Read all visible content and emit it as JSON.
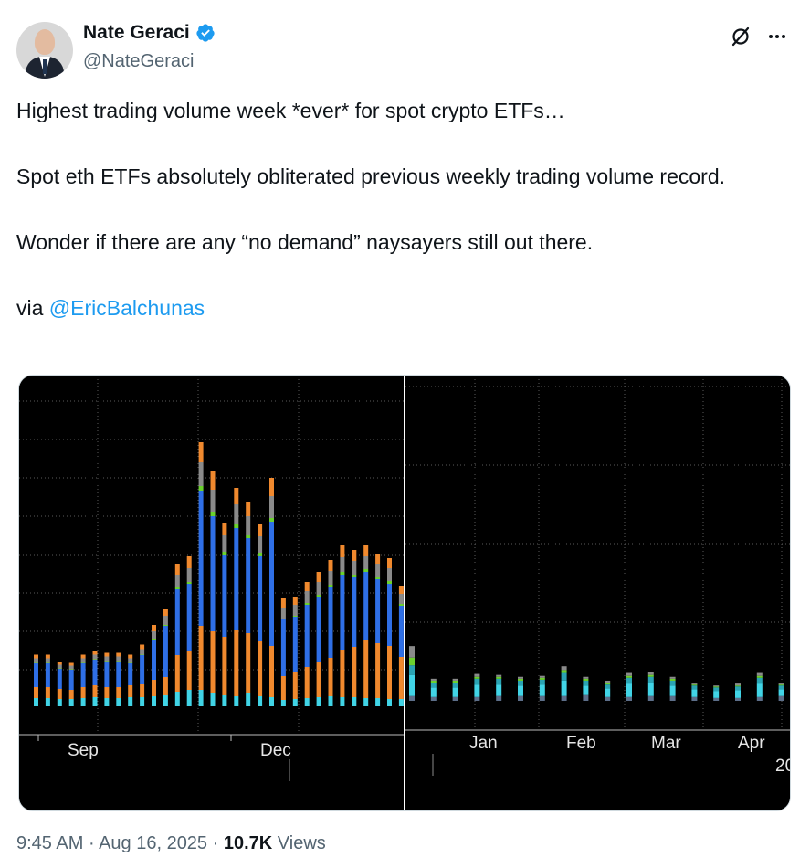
{
  "author": {
    "display_name": "Nate Geraci",
    "handle": "@NateGeraci",
    "verified": true,
    "verified_color": "#1d9bf0"
  },
  "tweet": {
    "line1": "Highest trading volume week *ever* for spot crypto ETFs…",
    "line2": "Spot eth ETFs absolutely obliterated previous weekly trading volume record.",
    "line3": "Wonder if there are any “no demand” naysayers still out there.",
    "via_prefix": "via ",
    "mention": "@EricBalchunas"
  },
  "meta": {
    "time": "9:45 AM",
    "dot1": " · ",
    "date": "Aug 16, 2025",
    "dot2": " · ",
    "views_count": "10.7K",
    "views_label": " Views"
  },
  "icons": {
    "verified": "verified-badge-icon",
    "grok": "grok-icon",
    "more": "more-icon"
  },
  "colors": {
    "text": "#0f1419",
    "muted": "#536471",
    "link": "#1d9bf0",
    "chart_bg": "#000000",
    "seg_cyan": "#41d4e6",
    "seg_orange": "#f0892e",
    "seg_blue": "#2f6fe6",
    "seg_green": "#6bd12e",
    "seg_gray": "#8a8a8a",
    "seg_slate": "#5d6f8a"
  },
  "chart_data": [
    {
      "type": "bar",
      "stacked": true,
      "x_tick_labels": [
        "Sep",
        "Dec"
      ],
      "series": [
        {
          "values": [
            0.9,
            0.9,
            0.8,
            0.8,
            0.9,
            1.0,
            0.9,
            0.9,
            1.0,
            1.0,
            1.1,
            1.2,
            1.6,
            1.8,
            1.8,
            1.4,
            1.2,
            1.1,
            1.4,
            1.1,
            1.0,
            0.7,
            0.8,
            0.9,
            1.0,
            1.1,
            1.0,
            1.0,
            0.9,
            0.9,
            0.8,
            0.8
          ]
        },
        {
          "values": [
            1.2,
            1.2,
            1.1,
            1.0,
            1.2,
            1.3,
            1.2,
            1.2,
            1.3,
            1.4,
            1.8,
            2.0,
            4.0,
            4.2,
            7.0,
            6.8,
            6.4,
            7.2,
            6.6,
            6.0,
            5.6,
            2.6,
            3.0,
            3.4,
            3.8,
            4.2,
            5.2,
            5.5,
            6.4,
            6.0,
            5.8,
            4.6
          ]
        },
        {
          "values": [
            2.6,
            2.6,
            2.2,
            2.2,
            2.6,
            2.8,
            2.8,
            2.8,
            2.4,
            3.2,
            4.4,
            5.6,
            7.2,
            7.4,
            14.8,
            12.6,
            9.0,
            11.2,
            10.4,
            9.4,
            13.6,
            6.2,
            6.0,
            6.8,
            7.2,
            7.8,
            8.2,
            7.6,
            7.4,
            7.0,
            6.8,
            5.6
          ]
        },
        {
          "values": [
            0.05,
            0.05,
            0.05,
            0.05,
            0.05,
            0.05,
            0.05,
            0.05,
            0.05,
            0.05,
            0.1,
            0.1,
            0.2,
            0.2,
            0.5,
            0.5,
            0.3,
            0.4,
            0.4,
            0.3,
            0.4,
            0.1,
            0.1,
            0.2,
            0.2,
            0.2,
            0.3,
            0.3,
            0.3,
            0.3,
            0.3,
            0.2
          ]
        },
        {
          "values": [
            0.5,
            0.5,
            0.4,
            0.4,
            0.5,
            0.5,
            0.5,
            0.5,
            0.5,
            0.6,
            0.8,
            1.0,
            1.4,
            1.5,
            2.6,
            2.4,
            1.8,
            2.2,
            2.0,
            1.8,
            2.4,
            1.2,
            1.2,
            1.3,
            1.4,
            1.5,
            1.6,
            1.5,
            1.5,
            1.4,
            1.4,
            1.1
          ]
        },
        {
          "values": [
            0.4,
            0.4,
            0.3,
            0.3,
            0.4,
            0.4,
            0.4,
            0.4,
            0.4,
            0.5,
            0.7,
            0.8,
            1.2,
            1.3,
            2.2,
            2.0,
            1.4,
            1.8,
            1.6,
            1.4,
            2.0,
            1.0,
            0.9,
            1.0,
            1.1,
            1.2,
            1.3,
            1.2,
            1.2,
            1.1,
            1.1,
            0.9
          ]
        }
      ]
    },
    {
      "type": "bar",
      "stacked": true,
      "x_tick_labels": [
        "Jan",
        "Feb",
        "Mar",
        "Apr",
        "20"
      ],
      "series": [
        {
          "values": [
            0.5,
            0.4,
            0.4,
            0.4,
            0.5,
            0.5,
            0.5,
            0.5,
            0.6,
            0.4,
            0.4,
            0.5,
            0.5,
            0.4,
            0.3,
            0.3,
            0.4,
            0.5,
            0.3
          ]
        },
        {
          "values": [
            2.2,
            1.0,
            1.0,
            1.3,
            1.2,
            1.1,
            1.2,
            1.6,
            1.0,
            0.9,
            1.4,
            1.4,
            1.1,
            0.8,
            0.7,
            0.8,
            1.4,
            0.7,
            0.6
          ]
        },
        {
          "values": [
            1.0,
            0.5,
            0.5,
            0.6,
            0.6,
            0.5,
            0.5,
            0.8,
            0.5,
            0.4,
            0.6,
            0.6,
            0.5,
            0.4,
            0.4,
            0.4,
            0.6,
            0.4,
            0.3
          ]
        },
        {
          "values": [
            0.8,
            0.2,
            0.2,
            0.2,
            0.2,
            0.2,
            0.2,
            0.3,
            0.2,
            0.2,
            0.2,
            0.2,
            0.2,
            0.1,
            0.1,
            0.1,
            0.2,
            0.1,
            0.1
          ]
        },
        {
          "values": [
            1.2,
            0.2,
            0.2,
            0.3,
            0.2,
            0.2,
            0.2,
            0.4,
            0.2,
            0.2,
            0.3,
            0.3,
            0.2,
            0.1,
            0.1,
            0.2,
            0.3,
            0.1,
            0.1
          ]
        }
      ]
    }
  ]
}
